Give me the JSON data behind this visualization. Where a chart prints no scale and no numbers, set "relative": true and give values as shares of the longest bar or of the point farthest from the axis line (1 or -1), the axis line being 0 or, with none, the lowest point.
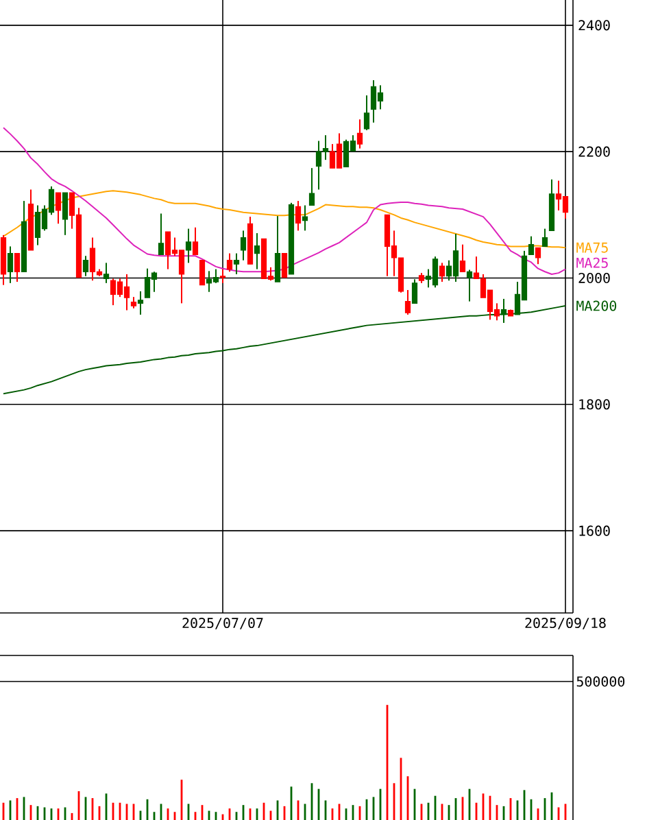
{
  "chart_data": [
    {
      "type": "candlestick",
      "categories": [
        null,
        null,
        null,
        null,
        null,
        null,
        null,
        null,
        null,
        null,
        null,
        null,
        null,
        null,
        null,
        null,
        null,
        null,
        null,
        null,
        null,
        null,
        null,
        null,
        null,
        null,
        null,
        null,
        null,
        null,
        null,
        null,
        "2025/07/07",
        null,
        null,
        null,
        null,
        null,
        null,
        null,
        null,
        null,
        null,
        null,
        null,
        null,
        null,
        null,
        null,
        null,
        null,
        null,
        null,
        null,
        null,
        null,
        null,
        null,
        null,
        null,
        null,
        null,
        null,
        null,
        null,
        null,
        null,
        null,
        null,
        null,
        null,
        null,
        null,
        null,
        null,
        null,
        null,
        null,
        null,
        null,
        null,
        null,
        "2025/09/18"
      ],
      "ohlc": [
        [
          2064,
          2068,
          1989,
          2006
        ],
        [
          2010,
          2050,
          1992,
          2039
        ],
        [
          2039,
          2039,
          1994,
          2010
        ],
        [
          2010,
          2122,
          2010,
          2089
        ],
        [
          2117,
          2140,
          2044,
          2044
        ],
        [
          2064,
          2115,
          2052,
          2104
        ],
        [
          2078,
          2115,
          2075,
          2109
        ],
        [
          2104,
          2145,
          2100,
          2140
        ],
        [
          2135,
          2135,
          2086,
          2107
        ],
        [
          2093,
          2135,
          2068,
          2135
        ],
        [
          2135,
          2135,
          2078,
          2099
        ],
        [
          2100,
          2111,
          2001,
          2001
        ],
        [
          2010,
          2035,
          2003,
          2028
        ],
        [
          2047,
          2064,
          1996,
          2010
        ],
        [
          2010,
          2014,
          2003,
          2005
        ],
        [
          1999,
          2024,
          1992,
          2006
        ],
        [
          1996,
          1999,
          1957,
          1974
        ],
        [
          1994,
          1999,
          1970,
          1974
        ],
        [
          1986,
          2006,
          1949,
          1969
        ],
        [
          1962,
          1970,
          1952,
          1956
        ],
        [
          1960,
          1979,
          1942,
          1965
        ],
        [
          1969,
          2015,
          1969,
          2001
        ],
        [
          1998,
          2010,
          1978,
          2008
        ],
        [
          2037,
          2102,
          2037,
          2055
        ],
        [
          2073,
          2073,
          2014,
          2037
        ],
        [
          2044,
          2064,
          2035,
          2039
        ],
        [
          2044,
          2044,
          1960,
          2006
        ],
        [
          2044,
          2078,
          2024,
          2057
        ],
        [
          2057,
          2080,
          2037,
          2037
        ],
        [
          2028,
          2028,
          1989,
          1989
        ],
        [
          1992,
          2011,
          1978,
          1998
        ],
        [
          1994,
          2014,
          1992,
          2001
        ],
        [
          2003,
          2014,
          1992,
          2001
        ],
        [
          2028,
          2039,
          2010,
          2014
        ],
        [
          2022,
          2039,
          2006,
          2028
        ],
        [
          2044,
          2075,
          2028,
          2064
        ],
        [
          2086,
          2097,
          2022,
          2022
        ],
        [
          2039,
          2071,
          2014,
          2051
        ],
        [
          2062,
          2062,
          1999,
          1999
        ],
        [
          2003,
          2017,
          1996,
          1998
        ],
        [
          1994,
          2098,
          1994,
          2039
        ],
        [
          2039,
          2039,
          2001,
          2001
        ],
        [
          2006,
          2119,
          2006,
          2116
        ],
        [
          2113,
          2122,
          2075,
          2087
        ],
        [
          2091,
          2115,
          2075,
          2097
        ],
        [
          2115,
          2174,
          2115,
          2134
        ],
        [
          2177,
          2217,
          2140,
          2200
        ],
        [
          2200,
          2226,
          2187,
          2205
        ],
        [
          2200,
          2212,
          2174,
          2174
        ],
        [
          2212,
          2229,
          2174,
          2174
        ],
        [
          2176,
          2219,
          2176,
          2216
        ],
        [
          2201,
          2226,
          2201,
          2217
        ],
        [
          2229,
          2251,
          2205,
          2212
        ],
        [
          2236,
          2289,
          2234,
          2261
        ],
        [
          2267,
          2313,
          2246,
          2303
        ],
        [
          2280,
          2305,
          2267,
          2293
        ],
        [
          2100,
          2100,
          2003,
          2050
        ],
        [
          2051,
          2075,
          2003,
          2032
        ],
        [
          2032,
          2032,
          1977,
          1979
        ],
        [
          1963,
          1981,
          1942,
          1945
        ],
        [
          1960,
          1998,
          1960,
          1992
        ],
        [
          2004,
          2008,
          1992,
          1996
        ],
        [
          1998,
          2014,
          1985,
          2003
        ],
        [
          1989,
          2034,
          1985,
          2030
        ],
        [
          2019,
          2024,
          1994,
          2003
        ],
        [
          2003,
          2028,
          1996,
          2019
        ],
        [
          2003,
          2070,
          1994,
          2043
        ],
        [
          2027,
          2053,
          2010,
          2010
        ],
        [
          2001,
          2013,
          1963,
          2010
        ],
        [
          2008,
          2034,
          1999,
          1999
        ],
        [
          1999,
          2006,
          1969,
          1969
        ],
        [
          1981,
          1981,
          1934,
          1947
        ],
        [
          1950,
          1960,
          1933,
          1940
        ],
        [
          1942,
          1967,
          1929,
          1950
        ],
        [
          1949,
          1950,
          1940,
          1940
        ],
        [
          1942,
          1994,
          1942,
          1974
        ],
        [
          1965,
          2043,
          1965,
          2035
        ],
        [
          2037,
          2066,
          2037,
          2053
        ],
        [
          2048,
          2048,
          2022,
          2032
        ],
        [
          2050,
          2078,
          2050,
          2064
        ],
        [
          2075,
          2156,
          2075,
          2133
        ],
        [
          2133,
          2154,
          2107,
          2125
        ],
        [
          2129,
          2129,
          2094,
          2104
        ]
      ],
      "colors": [
        "#ff0000",
        "#006600",
        "#ff0000",
        "#006600",
        "#ff0000",
        "#006600",
        "#006600",
        "#006600",
        "#ff0000",
        "#006600",
        "#ff0000",
        "#ff0000",
        "#006600",
        "#ff0000",
        "#ff0000",
        "#006600",
        "#ff0000",
        "#ff0000",
        "#ff0000",
        "#ff0000",
        "#006600",
        "#006600",
        "#006600",
        "#006600",
        "#ff0000",
        "#ff0000",
        "#ff0000",
        "#006600",
        "#ff0000",
        "#ff0000",
        "#006600",
        "#006600",
        "#ff0000",
        "#ff0000",
        "#006600",
        "#006600",
        "#ff0000",
        "#006600",
        "#ff0000",
        "#ff0000",
        "#006600",
        "#ff0000",
        "#006600",
        "#ff0000",
        "#006600",
        "#006600",
        "#006600",
        "#006600",
        "#ff0000",
        "#ff0000",
        "#006600",
        "#006600",
        "#ff0000",
        "#006600",
        "#006600",
        "#006600",
        "#ff0000",
        "#ff0000",
        "#ff0000",
        "#ff0000",
        "#006600",
        "#ff0000",
        "#006600",
        "#006600",
        "#ff0000",
        "#006600",
        "#006600",
        "#ff0000",
        "#006600",
        "#ff0000",
        "#ff0000",
        "#ff0000",
        "#ff0000",
        "#006600",
        "#ff0000",
        "#006600",
        "#006600",
        "#006600",
        "#ff0000",
        "#006600",
        "#006600",
        "#ff0000",
        "#ff0000"
      ],
      "series": [
        {
          "type": "line",
          "name": "MA75",
          "color": "#ffa500",
          "values": [
            2066,
            2073,
            2080,
            2088,
            2096,
            2101,
            2107,
            2113,
            2118,
            2122,
            2127,
            2129,
            2131,
            2133,
            2135,
            2137,
            2138,
            2137,
            2136,
            2134,
            2132,
            2129,
            2126,
            2124,
            2120,
            2118,
            2118,
            2118,
            2118,
            2116,
            2114,
            2111,
            2109,
            2108,
            2106,
            2104,
            2103,
            2102,
            2101,
            2100,
            2099,
            2099,
            2100,
            2100,
            2100,
            2105,
            2110,
            2116,
            2115,
            2114,
            2113,
            2113,
            2112,
            2112,
            2111,
            2108,
            2104,
            2100,
            2095,
            2092,
            2088,
            2085,
            2082,
            2079,
            2076,
            2073,
            2070,
            2067,
            2064,
            2060,
            2057,
            2055,
            2053,
            2052,
            2050,
            2050,
            2050,
            2051,
            2051,
            2050,
            2049,
            2049,
            2048
          ]
        },
        {
          "type": "line",
          "name": "MA25",
          "color": "#dd22bb",
          "values": [
            2238,
            2228,
            2217,
            2205,
            2190,
            2180,
            2168,
            2157,
            2150,
            2145,
            2138,
            2130,
            2122,
            2113,
            2104,
            2095,
            2084,
            2073,
            2062,
            2052,
            2045,
            2038,
            2036,
            2035,
            2035,
            2035,
            2035,
            2035,
            2035,
            2030,
            2024,
            2018,
            2015,
            2013,
            2011,
            2010,
            2010,
            2010,
            2010,
            2011,
            2012,
            2014,
            2020,
            2025,
            2030,
            2035,
            2040,
            2046,
            2051,
            2056,
            2064,
            2072,
            2080,
            2088,
            2108,
            2116,
            2118,
            2119,
            2120,
            2120,
            2118,
            2117,
            2115,
            2114,
            2113,
            2111,
            2110,
            2109,
            2105,
            2101,
            2097,
            2085,
            2071,
            2057,
            2043,
            2037,
            2030,
            2025,
            2015,
            2010,
            2006,
            2008,
            2014
          ]
        },
        {
          "type": "line",
          "name": "MA200",
          "color": "#005a00",
          "values": [
            1817,
            1819,
            1821,
            1823,
            1826,
            1830,
            1833,
            1836,
            1840,
            1844,
            1848,
            1852,
            1855,
            1857,
            1859,
            1861,
            1862,
            1863,
            1865,
            1866,
            1867,
            1869,
            1871,
            1872,
            1874,
            1875,
            1877,
            1878,
            1880,
            1881,
            1882,
            1884,
            1885,
            1887,
            1888,
            1890,
            1892,
            1893,
            1895,
            1897,
            1899,
            1901,
            1903,
            1905,
            1907,
            1909,
            1911,
            1913,
            1915,
            1917,
            1919,
            1921,
            1923,
            1925,
            1926,
            1927,
            1928,
            1929,
            1930,
            1931,
            1932,
            1933,
            1934,
            1935,
            1936,
            1937,
            1938,
            1939,
            1940,
            1940,
            1941,
            1942,
            1942,
            1943,
            1943,
            1944,
            1945,
            1946,
            1948,
            1950,
            1952,
            1954,
            1956
          ]
        }
      ],
      "ylim": [
        1470,
        2440
      ],
      "yticks": [
        1600,
        1800,
        2000,
        2200,
        2400
      ],
      "grid": true
    },
    {
      "type": "bar",
      "relative": true,
      "categories": [
        null,
        null,
        null,
        null,
        null,
        null,
        null,
        null,
        null,
        null,
        null,
        null,
        null,
        null,
        null,
        null,
        null,
        null,
        null,
        null,
        null,
        null,
        null,
        null,
        null,
        null,
        null,
        null,
        null,
        null,
        null,
        null,
        null,
        null,
        null,
        null,
        null,
        null,
        null,
        null,
        null,
        null,
        null,
        null,
        null,
        null,
        null,
        null,
        null,
        null,
        null,
        null,
        null,
        null,
        null,
        null,
        null,
        null,
        null,
        null,
        null,
        null,
        null,
        null,
        null,
        null,
        null,
        null,
        null,
        null,
        null,
        null,
        null,
        null,
        null,
        null,
        null,
        null,
        null,
        null,
        null,
        null,
        null
      ],
      "values": [
        0.15,
        0.17,
        0.19,
        0.2,
        0.13,
        0.12,
        0.11,
        0.1,
        0.1,
        0.11,
        0.06,
        0.25,
        0.2,
        0.19,
        0.12,
        0.23,
        0.15,
        0.15,
        0.14,
        0.14,
        0.08,
        0.18,
        0.07,
        0.14,
        0.1,
        0.07,
        0.35,
        0.14,
        0.07,
        0.13,
        0.08,
        0.07,
        0.05,
        0.1,
        0.07,
        0.13,
        0.1,
        0.1,
        0.15,
        0.08,
        0.17,
        0.12,
        0.29,
        0.17,
        0.14,
        0.32,
        0.27,
        0.17,
        0.1,
        0.14,
        0.1,
        0.13,
        0.12,
        0.18,
        0.2,
        0.27,
        1,
        0.32,
        0.54,
        0.38,
        0.27,
        0.14,
        0.15,
        0.21,
        0.14,
        0.13,
        0.19,
        0.2,
        0.27,
        0.15,
        0.23,
        0.21,
        0.13,
        0.12,
        0.19,
        0.17,
        0.26,
        0.18,
        0.1,
        0.19,
        0.24,
        0.11,
        0.14
      ],
      "colors": [
        "#ff0000",
        "#006600",
        "#ff0000",
        "#006600",
        "#ff0000",
        "#006600",
        "#006600",
        "#006600",
        "#ff0000",
        "#006600",
        "#ff0000",
        "#ff0000",
        "#006600",
        "#ff0000",
        "#ff0000",
        "#006600",
        "#ff0000",
        "#ff0000",
        "#ff0000",
        "#ff0000",
        "#006600",
        "#006600",
        "#006600",
        "#006600",
        "#ff0000",
        "#ff0000",
        "#ff0000",
        "#006600",
        "#ff0000",
        "#ff0000",
        "#006600",
        "#006600",
        "#ff0000",
        "#ff0000",
        "#006600",
        "#006600",
        "#ff0000",
        "#006600",
        "#ff0000",
        "#ff0000",
        "#006600",
        "#ff0000",
        "#006600",
        "#ff0000",
        "#006600",
        "#006600",
        "#006600",
        "#006600",
        "#ff0000",
        "#ff0000",
        "#006600",
        "#006600",
        "#ff0000",
        "#006600",
        "#006600",
        "#006600",
        "#ff0000",
        "#ff0000",
        "#ff0000",
        "#ff0000",
        "#006600",
        "#ff0000",
        "#006600",
        "#006600",
        "#ff0000",
        "#006600",
        "#006600",
        "#ff0000",
        "#006600",
        "#ff0000",
        "#ff0000",
        "#ff0000",
        "#ff0000",
        "#006600",
        "#ff0000",
        "#006600",
        "#006600",
        "#006600",
        "#ff0000",
        "#006600",
        "#006600",
        "#ff0000",
        "#ff0000"
      ],
      "annotations": [
        "500000"
      ]
    }
  ]
}
